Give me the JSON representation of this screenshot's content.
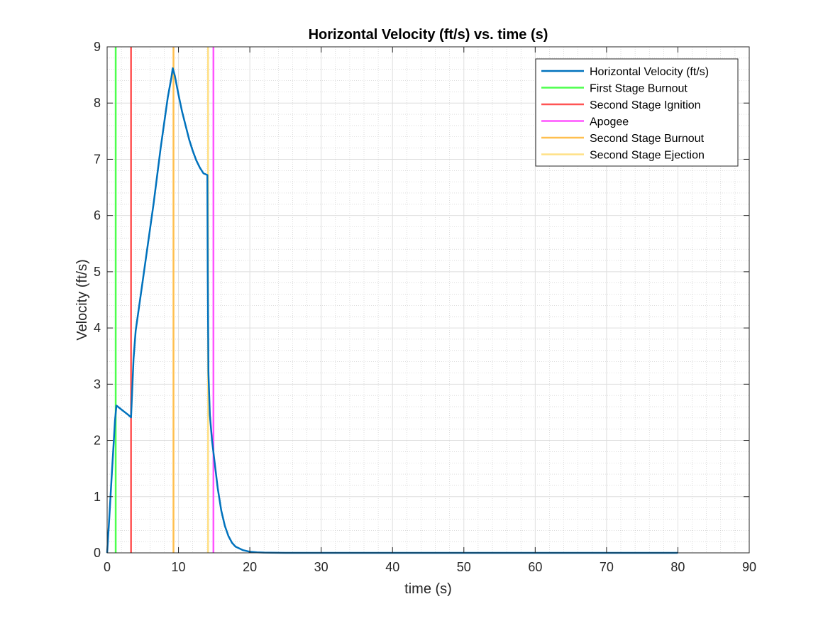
{
  "chart_data": {
    "type": "line",
    "title": "Horizontal Velocity (ft/s) vs. time (s)",
    "xlabel": "time (s)",
    "ylabel": "Velocity (ft/s)",
    "xlim": [
      0,
      90
    ],
    "ylim": [
      0,
      9
    ],
    "x_ticks": [
      0,
      10,
      20,
      30,
      40,
      50,
      60,
      70,
      80,
      90
    ],
    "y_ticks": [
      0,
      1,
      2,
      3,
      4,
      5,
      6,
      7,
      8,
      9
    ],
    "grid": true,
    "minor_grid": true,
    "legend_position": "top-right",
    "series": [
      {
        "name": "Horizontal Velocity (ft/s)",
        "color": "#0072BD",
        "x": [
          0,
          0.3,
          0.6,
          0.9,
          1.1,
          1.3,
          1.5,
          2.0,
          2.5,
          3.0,
          3.35,
          3.5,
          3.7,
          4.0,
          4.5,
          5.0,
          5.5,
          6.0,
          6.5,
          7.0,
          7.5,
          8.0,
          8.5,
          9.0,
          9.2,
          9.5,
          10.0,
          10.5,
          11.0,
          11.5,
          12.0,
          12.5,
          13.0,
          13.5,
          14.05,
          14.1,
          14.2,
          14.4,
          14.7,
          15.0,
          15.5,
          16.0,
          16.5,
          17.0,
          17.5,
          18.0,
          19.0,
          20.0,
          21.0,
          22.0,
          25.0,
          30.0,
          40.0,
          50.0,
          60.0,
          70.0,
          80.0
        ],
        "y": [
          0,
          0.62,
          1.28,
          1.92,
          2.35,
          2.62,
          2.6,
          2.55,
          2.5,
          2.45,
          2.41,
          2.85,
          3.45,
          3.95,
          4.4,
          4.85,
          5.3,
          5.75,
          6.2,
          6.7,
          7.2,
          7.65,
          8.1,
          8.45,
          8.62,
          8.48,
          8.15,
          7.85,
          7.6,
          7.35,
          7.15,
          6.98,
          6.85,
          6.75,
          6.72,
          5.0,
          3.2,
          2.45,
          2.0,
          1.68,
          1.15,
          0.75,
          0.48,
          0.3,
          0.18,
          0.11,
          0.05,
          0.02,
          0.01,
          0.005,
          0,
          0,
          0,
          0,
          0,
          0,
          0
        ]
      }
    ],
    "events": [
      {
        "name": "First Stage Burnout",
        "x": 1.2,
        "color": "#4DFF4D"
      },
      {
        "name": "Second Stage Ignition",
        "x": 3.35,
        "color": "#FF5454"
      },
      {
        "name": "Apogee",
        "x": 14.9,
        "color": "#FF54FF"
      },
      {
        "name": "Second Stage Burnout",
        "x": 9.3,
        "color": "#FFBF4F"
      },
      {
        "name": "Second Stage Ejection",
        "x": 14.15,
        "color": "#FFE085"
      }
    ],
    "legend_order": [
      "Horizontal Velocity (ft/s)",
      "First Stage Burnout",
      "Second Stage Ignition",
      "Apogee",
      "Second Stage Burnout",
      "Second Stage Ejection"
    ]
  }
}
